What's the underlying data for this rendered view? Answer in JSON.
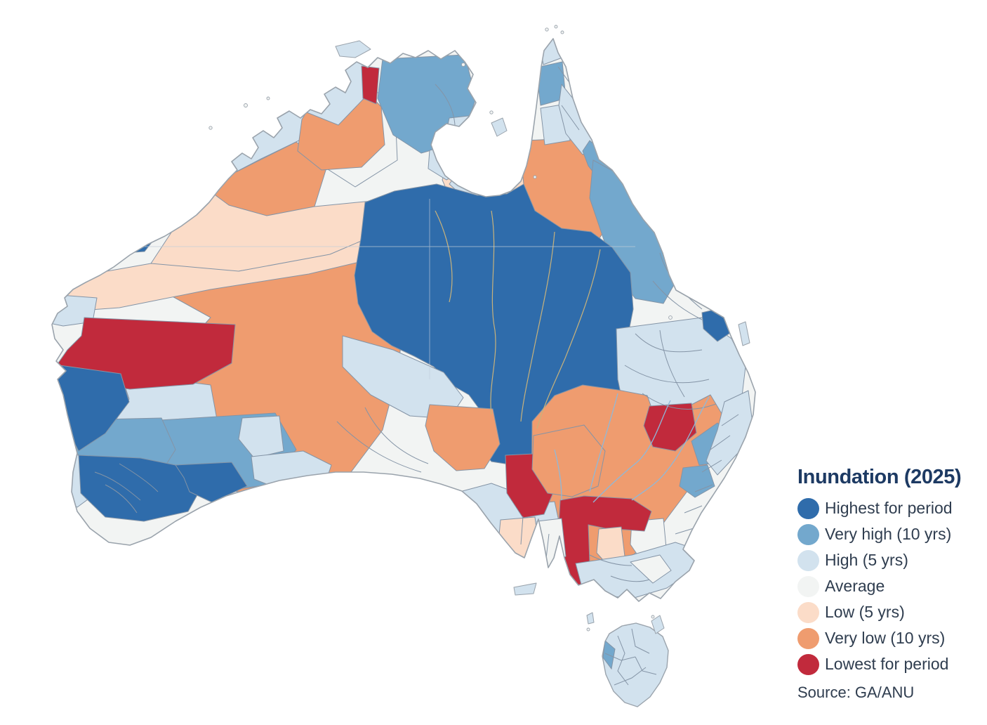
{
  "legend": {
    "title": "Inundation (2025)",
    "source": "Source: GA/ANU",
    "title_color": "#1d3a63",
    "label_color": "#2f3d4f",
    "items": [
      {
        "key": "highest",
        "label": "Highest for period",
        "color": "#2f6cab"
      },
      {
        "key": "very_high",
        "label": "Very high (10 yrs)",
        "color": "#73a8cd"
      },
      {
        "key": "high",
        "label": "High (5 yrs)",
        "color": "#d2e2ee"
      },
      {
        "key": "average",
        "label": "Average",
        "color": "#f2f4f3"
      },
      {
        "key": "low",
        "label": "Low (5 yrs)",
        "color": "#fbdcc8"
      },
      {
        "key": "very_low",
        "label": "Very low (10 yrs)",
        "color": "#ef9c6f"
      },
      {
        "key": "lowest",
        "label": "Lowest for period",
        "color": "#c12a3c"
      }
    ]
  },
  "map": {
    "land_default_category": "average",
    "coast_color": "#9aa3ac",
    "boundary_color": "#8494a6",
    "river_color": "#8fb9d9",
    "stream_color": "#c8b27b",
    "graticule_color": "#c2cdd8",
    "region_categories": {
      "kimberley-coast": "high",
      "kimberley-east": "average",
      "fitzroy-wa": "very_low",
      "wa-interior": "very_low",
      "peach-band-north": "low",
      "peach-band-south": "low",
      "murchison": "high",
      "midwest": "very_high",
      "sw-corner": "very_high",
      "sw-west-coast": "high",
      "perth-patch": "average",
      "south-coast-west": "highest",
      "south-coast-east": "highest",
      "esperance": "high",
      "bight-coast": "high",
      "degrey": "highest",
      "nw-coast": "high",
      "west-coast-strip": "high",
      "gascoyne": "lowest",
      "carnarvon-wedge": "highest",
      "topend-west": "high",
      "topend-daly": "very_high",
      "darwin-sliver": "lowest",
      "victoria-river": "very_low",
      "arnhem-east": "high",
      "gulf-coast-1": "high",
      "gulf-coast-2": "high",
      "nicholson": "low",
      "gulf-rivers-qld": "very_low",
      "cape-tip": "high",
      "cape-west": "very_high",
      "cape-mid": "high",
      "cape-east": "high",
      "cape-east-vh": "very_high",
      "burdekin": "very_high",
      "lake-eyre-basin": "highest",
      "west-of-basin": "high",
      "sa-orange-west": "very_low",
      "eyre-peninsula": "high",
      "yorke-peninsula": "high",
      "flinders-ranges": "lowest",
      "sa-south-peach": "low",
      "sa-orange-east": "very_low",
      "qld-south": "high",
      "murray-darling": "very_low",
      "qld-coast-hp1": "highest",
      "qld-coast-hp2": "highest",
      "border-rivers-red": "lowest",
      "nsw-coast-vh1": "very_high",
      "nsw-coast-vh2": "very_high",
      "nsw-coast-h5": "high",
      "nsw-white": "average",
      "murray-corridor": "lowest",
      "vic-peach": "low",
      "vic-white": "average",
      "vic-coast": "high",
      "vic-otway": "very_high",
      "gippsland-white": "average",
      "tasmania": "high",
      "tas-west-sliver": "very_high",
      "melville-island": "high",
      "groote-island": "high",
      "kangaroo-island": "high",
      "fraser-island": "high",
      "king-island": "high",
      "flinders-island": "high"
    }
  }
}
